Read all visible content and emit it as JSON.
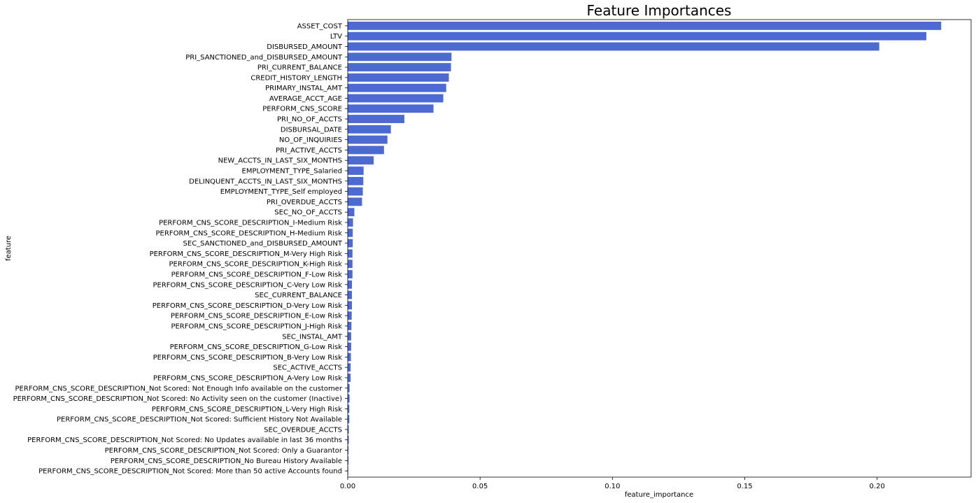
{
  "chart_data": {
    "type": "bar",
    "orientation": "horizontal",
    "title": "Feature Importances",
    "xlabel": "feature_importance",
    "ylabel": "feature",
    "xlim": [
      0,
      0.2355
    ],
    "xticks": [
      0.0,
      0.05,
      0.1,
      0.15,
      0.2
    ],
    "xtick_labels": [
      "0.00",
      "0.05",
      "0.10",
      "0.15",
      "0.20"
    ],
    "bar_color": "#4c6ad1",
    "grid": false,
    "categories": [
      "ASSET_COST",
      "LTV",
      "DISBURSED_AMOUNT",
      "PRI_SANCTIONED_and_DISBURSED_AMOUNT",
      "PRI_CURRENT_BALANCE",
      "CREDIT_HISTORY_LENGTH",
      "PRIMARY_INSTAL_AMT",
      "AVERAGE_ACCT_AGE",
      "PERFORM_CNS_SCORE",
      "PRI_NO_OF_ACCTS",
      "DISBURSAL_DATE",
      "NO_OF_INQUIRIES",
      "PRI_ACTIVE_ACCTS",
      "NEW_ACCTS_IN_LAST_SIX_MONTHS",
      "EMPLOYMENT_TYPE_Salaried",
      "DELINQUENT_ACCTS_IN_LAST_SIX_MONTHS",
      "EMPLOYMENT_TYPE_Self employed",
      "PRI_OVERDUE_ACCTS",
      "SEC_NO_OF_ACCTS",
      "PERFORM_CNS_SCORE_DESCRIPTION_I-Medium Risk",
      "PERFORM_CNS_SCORE_DESCRIPTION_H-Medium Risk",
      "SEC_SANCTIONED_and_DISBURSED_AMOUNT",
      "PERFORM_CNS_SCORE_DESCRIPTION_M-Very High Risk",
      "PERFORM_CNS_SCORE_DESCRIPTION_K-High Risk",
      "PERFORM_CNS_SCORE_DESCRIPTION_F-Low Risk",
      "PERFORM_CNS_SCORE_DESCRIPTION_C-Very Low Risk",
      "SEC_CURRENT_BALANCE",
      "PERFORM_CNS_SCORE_DESCRIPTION_D-Very Low Risk",
      "PERFORM_CNS_SCORE_DESCRIPTION_E-Low Risk",
      "PERFORM_CNS_SCORE_DESCRIPTION_J-High Risk",
      "SEC_INSTAL_AMT",
      "PERFORM_CNS_SCORE_DESCRIPTION_G-Low Risk",
      "PERFORM_CNS_SCORE_DESCRIPTION_B-Very Low Risk",
      "SEC_ACTIVE_ACCTS",
      "PERFORM_CNS_SCORE_DESCRIPTION_A-Very Low Risk",
      "PERFORM_CNS_SCORE_DESCRIPTION_Not Scored: Not Enough Info available on the customer",
      "PERFORM_CNS_SCORE_DESCRIPTION_Not Scored: No Activity seen on the customer (Inactive)",
      "PERFORM_CNS_SCORE_DESCRIPTION_L-Very High Risk",
      "PERFORM_CNS_SCORE_DESCRIPTION_Not Scored: Sufficient History Not Available",
      "SEC_OVERDUE_ACCTS",
      "PERFORM_CNS_SCORE_DESCRIPTION_Not Scored: No Updates available in last 36 months",
      "PERFORM_CNS_SCORE_DESCRIPTION_Not Scored: Only a Guarantor",
      "PERFORM_CNS_SCORE_DESCRIPTION_No Bureau History Available",
      "PERFORM_CNS_SCORE_DESCRIPTION_Not Scored: More than 50 active Accounts found"
    ],
    "values": [
      0.2242,
      0.2186,
      0.2008,
      0.0392,
      0.039,
      0.0382,
      0.0372,
      0.0361,
      0.0324,
      0.0214,
      0.0163,
      0.015,
      0.0137,
      0.0098,
      0.006,
      0.0059,
      0.0057,
      0.0054,
      0.0025,
      0.002,
      0.0019,
      0.0019,
      0.0018,
      0.0018,
      0.0018,
      0.0016,
      0.0016,
      0.0016,
      0.0015,
      0.0014,
      0.0013,
      0.0013,
      0.0012,
      0.0011,
      0.0011,
      0.0007,
      0.0007,
      0.0006,
      0.0006,
      0.0004,
      0.0004,
      0.0003,
      0.0003,
      0.0002
    ]
  }
}
